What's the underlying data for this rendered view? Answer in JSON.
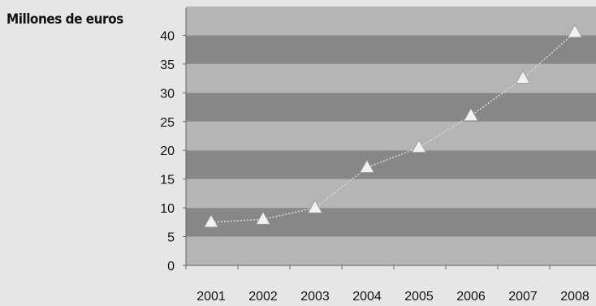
{
  "chart_data": {
    "type": "line",
    "title": "",
    "ylabel": "Millones de euros",
    "xlabel": "",
    "categories": [
      "2001",
      "2002",
      "2003",
      "2004",
      "2005",
      "2006",
      "2007",
      "2008"
    ],
    "series": [
      {
        "values": [
          7.5,
          8,
          10,
          17,
          20.5,
          26,
          32.5,
          40.5
        ]
      }
    ],
    "ylim": [
      0,
      45
    ],
    "yticks": [
      0,
      5,
      10,
      15,
      20,
      25,
      30,
      35,
      40
    ],
    "grid": "alternating horizontal bands",
    "colors": {
      "band_light": "#b5b5b5",
      "band_dark": "#878787",
      "line": "#d8d8d8",
      "marker": "#f2f2f2",
      "background": "#e6e6e6"
    }
  }
}
